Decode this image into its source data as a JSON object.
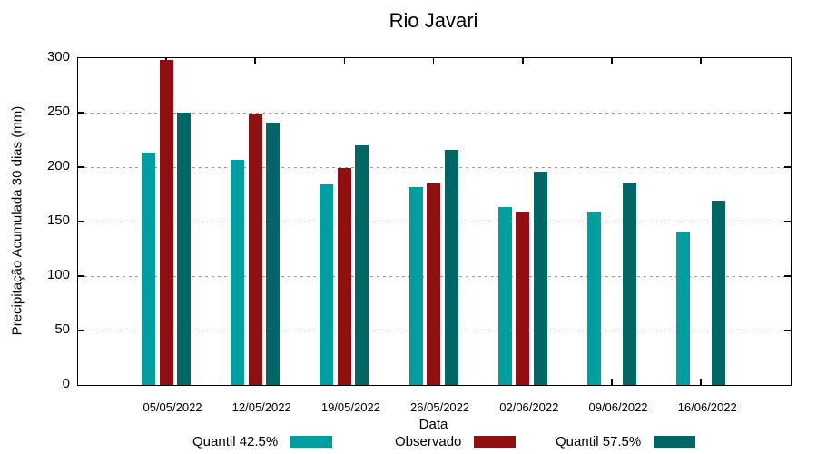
{
  "title": "Rio Javari",
  "axes": {
    "x_label": "Data",
    "y_label": "Precipitação Acumulada 30 dias (mm)",
    "y_ticks": [
      0,
      50,
      100,
      150,
      200,
      250,
      300
    ]
  },
  "colors": {
    "quantil_425": "#009e9e",
    "observado": "#8e1010",
    "quantil_575": "#006666",
    "grid": "#999999",
    "axis": "#000000"
  },
  "chart_data": {
    "type": "bar",
    "title": "Rio Javari",
    "xlabel": "Data",
    "ylabel": "Precipitação Acumulada 30 dias (mm)",
    "ylim": [
      0,
      300
    ],
    "grid": true,
    "legend_position": "bottom",
    "categories": [
      "05/05/2022",
      "12/05/2022",
      "19/05/2022",
      "26/05/2022",
      "02/06/2022",
      "09/06/2022",
      "16/06/2022"
    ],
    "series": [
      {
        "name": "Quantil 42.5%",
        "color": "#009e9e",
        "values": [
          213,
          207,
          184,
          182,
          163,
          158,
          140
        ]
      },
      {
        "name": "Observado",
        "color": "#8e1010",
        "values": [
          298,
          249,
          199,
          185,
          159,
          null,
          null
        ]
      },
      {
        "name": "Quantil 57.5%",
        "color": "#006666",
        "values": [
          250,
          241,
          220,
          216,
          196,
          186,
          169
        ]
      }
    ]
  }
}
